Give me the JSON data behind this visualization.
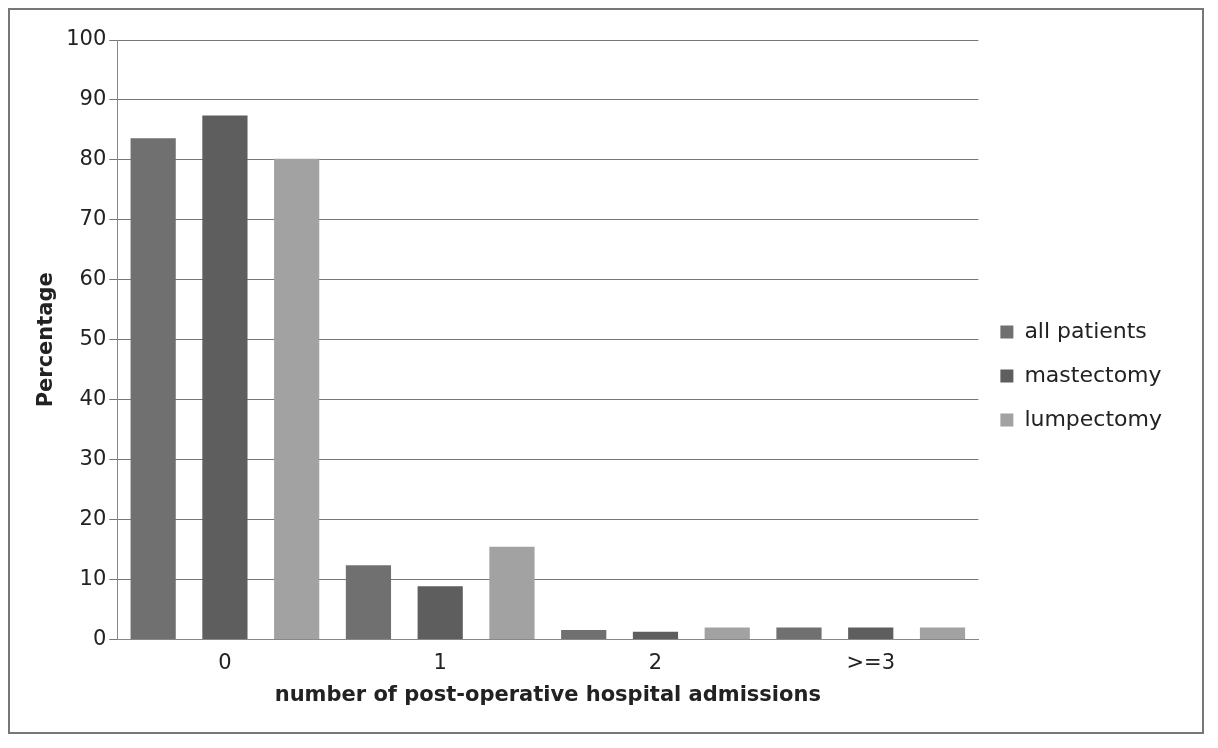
{
  "chart_data": {
    "type": "bar",
    "xlabel": "number of post-operative hospital admissions",
    "ylabel": "Percentage",
    "categories": [
      "0",
      "1",
      "2",
      ">=3"
    ],
    "series": [
      {
        "name": "all patients",
        "color": "#707070",
        "values": [
          83.6,
          12.4,
          1.6,
          2
        ]
      },
      {
        "name": "mastectomy",
        "color": "#5e5e5e",
        "values": [
          87.4,
          8.9,
          1.3,
          2
        ]
      },
      {
        "name": "lumpectomy",
        "color": "#a2a2a2",
        "values": [
          80.2,
          15.5,
          2,
          2
        ]
      }
    ],
    "ylim": [
      0,
      100
    ],
    "yticks": [
      0,
      10,
      20,
      30,
      40,
      50,
      60,
      70,
      80,
      90,
      100
    ],
    "grid": "y",
    "legend": "right"
  }
}
